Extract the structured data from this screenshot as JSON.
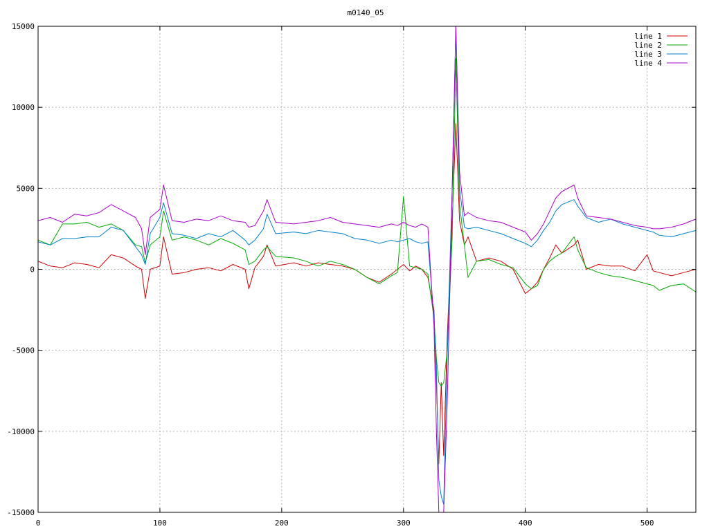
{
  "chart_data": {
    "type": "line",
    "title": "m0140_05",
    "xlabel": "",
    "ylabel": "",
    "xlim": [
      0,
      540
    ],
    "ylim": [
      -15000,
      15000
    ],
    "x_ticks": [
      0,
      100,
      200,
      300,
      400,
      500
    ],
    "y_ticks": [
      -15000,
      -10000,
      -5000,
      0,
      5000,
      10000,
      15000
    ],
    "grid": true,
    "legend_position": "top-right",
    "x": [
      0,
      10,
      20,
      30,
      40,
      50,
      60,
      70,
      80,
      85,
      88,
      92,
      100,
      103,
      110,
      120,
      130,
      140,
      150,
      160,
      170,
      173,
      178,
      185,
      188,
      195,
      210,
      220,
      230,
      240,
      250,
      260,
      270,
      280,
      290,
      295,
      300,
      305,
      310,
      315,
      320,
      325,
      327,
      329,
      331,
      333,
      336,
      340,
      343,
      346,
      350,
      353,
      360,
      370,
      380,
      390,
      400,
      405,
      410,
      415,
      420,
      425,
      430,
      440,
      443,
      450,
      460,
      470,
      480,
      490,
      500,
      505,
      510,
      520,
      530,
      540
    ],
    "series": [
      {
        "name": "line 1",
        "color": "#cc0000",
        "values": [
          500,
          200,
          100,
          400,
          300,
          100,
          900,
          700,
          200,
          0,
          -1800,
          0,
          200,
          2000,
          -300,
          -200,
          0,
          100,
          -100,
          300,
          0,
          -1200,
          100,
          800,
          1500,
          200,
          400,
          200,
          400,
          300,
          200,
          0,
          -500,
          -800,
          -300,
          0,
          300,
          -100,
          200,
          0,
          -500,
          -2500,
          -7000,
          -12000,
          -7000,
          -11500,
          -4000,
          3000,
          9000,
          3000,
          1500,
          2000,
          500,
          700,
          500,
          0,
          -1500,
          -1200,
          -800,
          0,
          700,
          1500,
          1000,
          1500,
          1800,
          0,
          300,
          200,
          200,
          -100,
          900,
          -100,
          -200,
          -400,
          -200,
          0
        ]
      },
      {
        "name": "line 2",
        "color": "#00aa00",
        "values": [
          1800,
          1500,
          2800,
          2800,
          2900,
          2600,
          2800,
          2400,
          1500,
          1400,
          400,
          1500,
          2000,
          3600,
          1800,
          2000,
          1800,
          1500,
          1900,
          1600,
          1200,
          300,
          500,
          1200,
          1400,
          800,
          700,
          500,
          200,
          500,
          300,
          0,
          -500,
          -900,
          -400,
          -200,
          4500,
          200,
          100,
          0,
          -300,
          -3000,
          -5500,
          -7000,
          -7200,
          -7000,
          -5000,
          2000,
          13000,
          4000,
          1500,
          -500,
          500,
          600,
          300,
          100,
          -900,
          -1200,
          -1000,
          0,
          500,
          800,
          1000,
          2000,
          1200,
          100,
          -200,
          -400,
          -500,
          -700,
          -900,
          -1000,
          -1300,
          -1000,
          -900,
          -1400
        ]
      },
      {
        "name": "line 3",
        "color": "#0080cc",
        "values": [
          1700,
          1500,
          1900,
          1900,
          2000,
          2000,
          2600,
          2400,
          1400,
          900,
          300,
          2200,
          3200,
          4100,
          2200,
          2100,
          1900,
          2200,
          2000,
          2400,
          1800,
          1500,
          1800,
          2500,
          3400,
          2200,
          2300,
          2200,
          2400,
          2300,
          2200,
          1900,
          1800,
          1600,
          1800,
          1700,
          1800,
          1900,
          1700,
          1600,
          1700,
          -3000,
          -6000,
          -13000,
          -14000,
          -14500,
          -5000,
          5000,
          15000,
          5000,
          2600,
          2500,
          2600,
          2400,
          2200,
          1900,
          1600,
          1400,
          1800,
          2400,
          2900,
          3600,
          4000,
          4300,
          3900,
          3200,
          2900,
          3100,
          2800,
          2600,
          2400,
          2300,
          2100,
          2000,
          2200,
          2400
        ]
      },
      {
        "name": "line 4",
        "color": "#aa00cc",
        "values": [
          3000,
          3200,
          2900,
          3400,
          3300,
          3500,
          4000,
          3600,
          3200,
          2500,
          900,
          3200,
          3700,
          5200,
          3000,
          2900,
          3100,
          3000,
          3300,
          3000,
          2900,
          2600,
          2700,
          3600,
          4300,
          2900,
          2800,
          2900,
          3000,
          3200,
          2900,
          2800,
          2700,
          2600,
          2800,
          2700,
          2900,
          2700,
          2600,
          2800,
          2600,
          -3500,
          -10000,
          -15000,
          -15000,
          -15000,
          -8000,
          5000,
          15000,
          6000,
          3300,
          3500,
          3200,
          3000,
          2900,
          2600,
          2300,
          1800,
          2200,
          2800,
          3600,
          4400,
          4800,
          5200,
          4400,
          3300,
          3200,
          3100,
          2900,
          2700,
          2600,
          2500,
          2500,
          2600,
          2800,
          3100
        ]
      }
    ]
  }
}
